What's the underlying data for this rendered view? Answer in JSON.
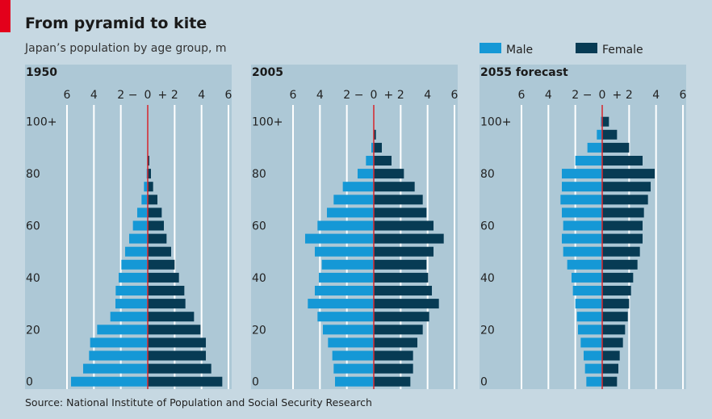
{
  "title": "From pyramid to kite",
  "subtitle": "Japan’s population by age group, m",
  "source": "Source: National Institute of Population and Social Security Research",
  "colors": {
    "male": "#1598d6",
    "female": "#073b54",
    "zero_line": "#d7252c",
    "panel": "#adc8d6",
    "background": "#c6d8e2",
    "accent": "#e3001b"
  },
  "chart_data": {
    "type": "bar",
    "orientation": "horizontal population pyramid",
    "legend": [
      {
        "name": "Male",
        "key": "male"
      },
      {
        "name": "Female",
        "key": "female"
      }
    ],
    "legend_placement": "top-right",
    "x_range": [
      -6,
      6
    ],
    "x_tick_labels": [
      "6",
      "4",
      "2",
      "−",
      "0",
      "+",
      "2",
      "4",
      "6"
    ],
    "y_tick_labels": [
      "0",
      "20",
      "40",
      "60",
      "80",
      "100+"
    ],
    "age_groups": [
      "0-4",
      "5-9",
      "10-14",
      "15-19",
      "20-24",
      "25-29",
      "30-34",
      "35-39",
      "40-44",
      "45-49",
      "50-54",
      "55-59",
      "60-64",
      "65-69",
      "70-74",
      "75-79",
      "80-84",
      "85-89",
      "90-94",
      "95-99",
      "100+"
    ],
    "panels": [
      {
        "title": "1950",
        "male": [
          5.7,
          4.8,
          4.36,
          4.28,
          3.76,
          2.78,
          2.4,
          2.38,
          2.16,
          1.96,
          1.68,
          1.38,
          1.1,
          0.78,
          0.46,
          0.28,
          0.08,
          0.04,
          0,
          0,
          0
        ],
        "female": [
          5.54,
          4.72,
          4.32,
          4.32,
          3.92,
          3.44,
          2.8,
          2.72,
          2.32,
          2.0,
          1.74,
          1.4,
          1.2,
          1.04,
          0.72,
          0.4,
          0.24,
          0.12,
          0,
          0,
          0
        ]
      },
      {
        "title": "2005",
        "male": [
          2.88,
          2.98,
          3.08,
          3.4,
          3.78,
          4.18,
          4.9,
          4.38,
          4.08,
          3.86,
          4.38,
          5.1,
          4.18,
          3.48,
          2.98,
          2.3,
          1.2,
          0.58,
          0.18,
          0.02,
          0
        ],
        "female": [
          2.72,
          2.92,
          2.92,
          3.24,
          3.64,
          4.12,
          4.84,
          4.32,
          4.04,
          3.92,
          4.44,
          5.2,
          4.44,
          3.92,
          3.64,
          3.04,
          2.24,
          1.32,
          0.6,
          0.16,
          0
        ]
      },
      {
        "title": "2055 forecast",
        "male": [
          1.18,
          1.28,
          1.38,
          1.6,
          1.8,
          1.88,
          2.0,
          2.18,
          2.28,
          2.6,
          2.9,
          3.0,
          2.9,
          3.0,
          3.1,
          3.0,
          3.0,
          2.0,
          1.1,
          0.4,
          0.1
        ],
        "female": [
          1.1,
          1.2,
          1.3,
          1.54,
          1.7,
          1.9,
          2.0,
          2.14,
          2.3,
          2.62,
          2.8,
          3.0,
          3.0,
          3.1,
          3.4,
          3.6,
          3.9,
          3.0,
          2.0,
          1.1,
          0.5
        ]
      }
    ]
  }
}
